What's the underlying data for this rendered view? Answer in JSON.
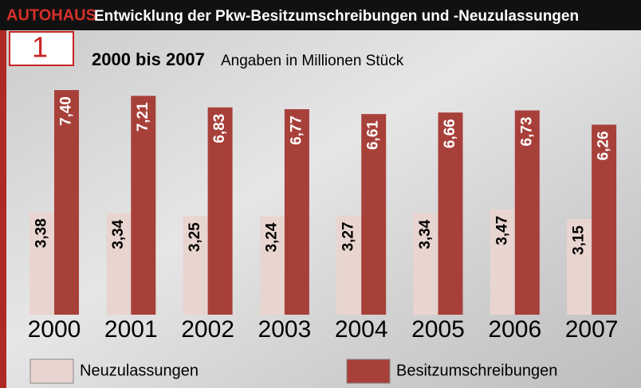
{
  "chart_data": {
    "type": "bar",
    "logo": "AUTOHAUS",
    "chart_number": "1",
    "title": "Entwicklung der Pkw-Besitzumschreibungen und -Neuzulassungen",
    "subtitle": "2000 bis 2007",
    "note": "Angaben in Millionen Stück",
    "categories": [
      "2000",
      "2001",
      "2002",
      "2003",
      "2004",
      "2005",
      "2006",
      "2007"
    ],
    "series": [
      {
        "name": "Neuzulassungen",
        "color": "#e9d5cf",
        "values": [
          3.38,
          3.34,
          3.25,
          3.24,
          3.27,
          3.34,
          3.47,
          3.15
        ],
        "value_labels": [
          "3,38",
          "3,34",
          "3,25",
          "3,24",
          "3,27",
          "3,34",
          "3,47",
          "3,15"
        ]
      },
      {
        "name": "Besitzumschreibungen",
        "color": "#a8403a",
        "values": [
          7.4,
          7.21,
          6.83,
          6.77,
          6.61,
          6.66,
          6.73,
          6.26
        ],
        "value_labels": [
          "7,40",
          "7,21",
          "6,83",
          "6,77",
          "6,61",
          "6,66",
          "6,73",
          "6,26"
        ]
      }
    ]
  }
}
